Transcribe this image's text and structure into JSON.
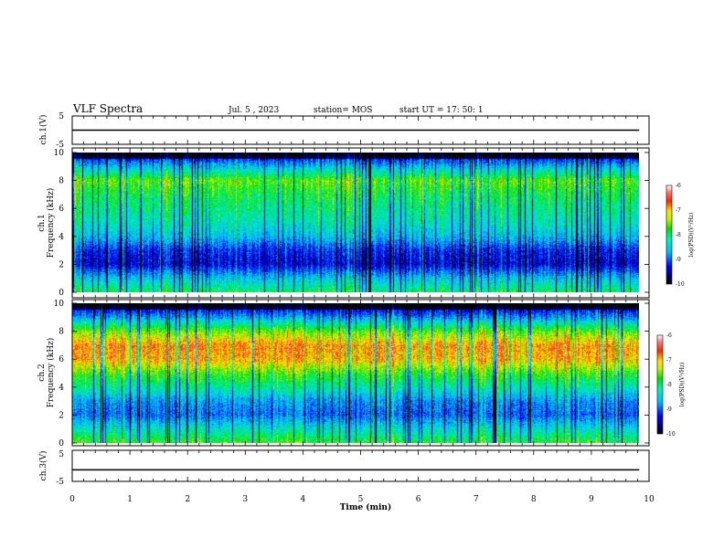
{
  "header": {
    "title": "VLF Spectra",
    "date": "Jul. 5 , 2023",
    "station": "station= MOS",
    "start": "start UT = 17: 50: 1"
  },
  "chart_data": [
    {
      "type": "line",
      "panel": "ch1-voltage",
      "ylabel": "ch.1(V)",
      "ylim": [
        -5,
        5
      ],
      "yticks": [
        "5",
        "-5"
      ],
      "x": [
        0,
        9.83
      ],
      "values": [
        0,
        0
      ]
    },
    {
      "type": "heatmap",
      "panel": "ch1-spectrogram",
      "ylabel": "ch.1\nFrequency (kHz)",
      "ylim": [
        0,
        10
      ],
      "yticks": [
        "0",
        "2",
        "4",
        "6",
        "8",
        "10"
      ],
      "xlim": [
        0,
        10
      ],
      "data_extent_min": 9.83,
      "colorbar": {
        "label": "log(PSD)(V²/Hz)",
        "ticks": [
          "-6",
          "-7",
          "-8",
          "-9",
          "-10"
        ],
        "range": [
          -10,
          -6
        ]
      },
      "profile_khz": [
        0,
        1,
        2,
        3,
        4,
        5,
        6,
        7,
        8,
        9,
        10
      ],
      "profile_logpsd": [
        -8.0,
        -8.6,
        -9.4,
        -9.2,
        -8.6,
        -8.3,
        -8.1,
        -7.9,
        -7.6,
        -8.6,
        -9.6
      ]
    },
    {
      "type": "heatmap",
      "panel": "ch2-spectrogram",
      "ylabel": "ch.2\nFrequency (kHz)",
      "ylim": [
        0,
        10
      ],
      "yticks": [
        "0",
        "2",
        "4",
        "6",
        "8",
        "10"
      ],
      "xlim": [
        0,
        10
      ],
      "data_extent_min": 9.83,
      "colorbar": {
        "label": "log(PSD)(V²/Hz)",
        "ticks": [
          "-6",
          "-7",
          "-8",
          "-9",
          "-10"
        ],
        "range": [
          -10,
          -6
        ]
      },
      "profile_khz": [
        0,
        1,
        2,
        3,
        4,
        5,
        6,
        7,
        8,
        9,
        10
      ],
      "profile_logpsd": [
        -7.8,
        -8.4,
        -9.0,
        -8.8,
        -8.2,
        -7.7,
        -7.0,
        -6.9,
        -7.6,
        -8.8,
        -9.7
      ]
    },
    {
      "type": "line",
      "panel": "ch3-voltage",
      "ylabel": "ch.3(V)",
      "ylim": [
        -5,
        5
      ],
      "yticks": [
        "5",
        "-5"
      ],
      "x": [
        0,
        9.83
      ],
      "values": [
        -1.3,
        -1.3
      ]
    }
  ],
  "xaxis": {
    "label": "Time (min)",
    "ticks": [
      "0",
      "1",
      "2",
      "3",
      "4",
      "5",
      "6",
      "7",
      "8",
      "9",
      "10"
    ],
    "range": [
      0,
      10
    ]
  }
}
